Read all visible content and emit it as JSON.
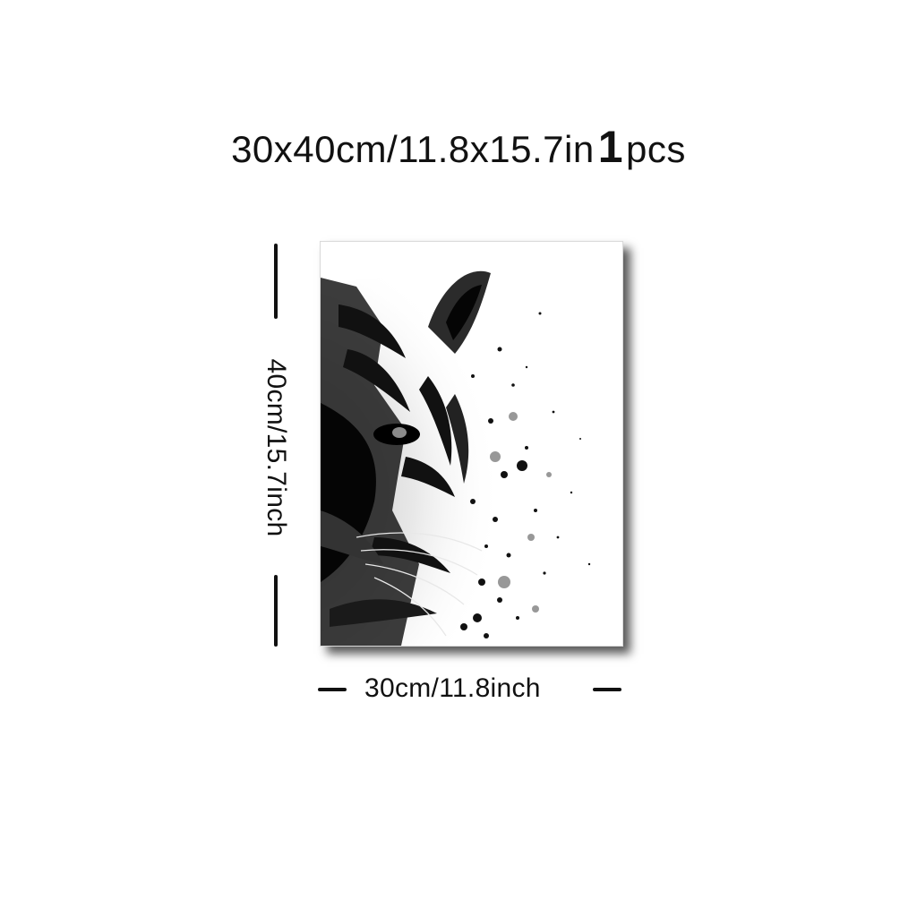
{
  "header": {
    "size_text": "30x40cm/11.8x15.7in",
    "quantity": "1",
    "quantity_unit": "pcs"
  },
  "dimensions": {
    "height_label": "40cm/15.7inch",
    "width_label": "30cm/11.8inch"
  },
  "artwork": {
    "subject": "tiger-face-watercolor"
  },
  "colors": {
    "background": "#ffffff",
    "ink": "#111111"
  }
}
